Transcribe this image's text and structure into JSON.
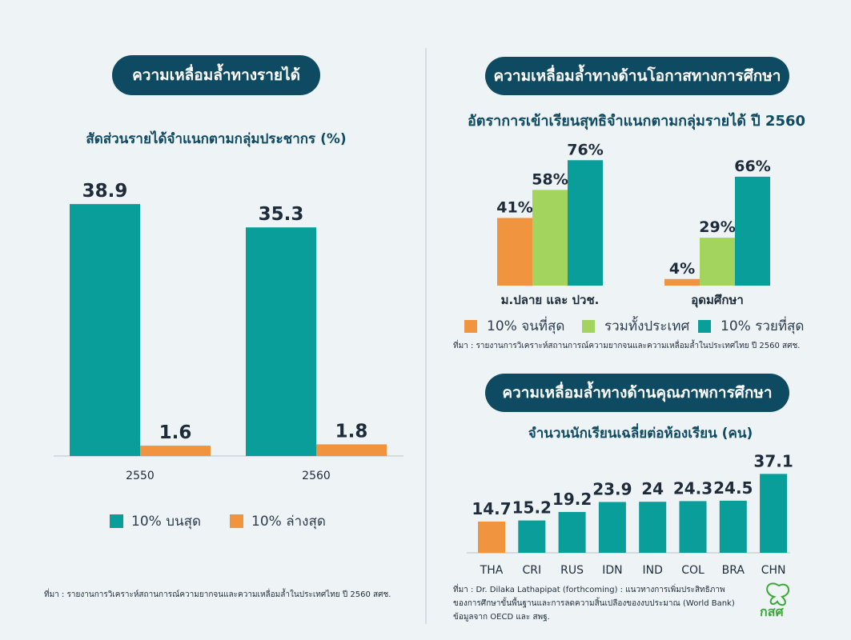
{
  "colors": {
    "teal": "#0a9e9a",
    "orange": "#f1943f",
    "green": "#a2d45e",
    "navy": "#0f4a63"
  },
  "left": {
    "heading": "ความเหลื่อมล้ำทางรายได้",
    "subtitle": "สัดส่วนรายได้จำแนกตามกลุ่มประชากร (%)",
    "legend": [
      "10% บนสุด",
      "10% ล่างสุด"
    ],
    "source": "ที่มา : รายงานการวิเคราะห์สถานการณ์ความยากจนและความเหลื่อมล้ำในประเทศไทย ปี 2560 สศช."
  },
  "right_top": {
    "heading": "ความเหลื่อมล้ำทางด้านโอกาสทางการศึกษา",
    "subtitle": "อัตราการเข้าเรียนสุทธิจำแนกตามกลุ่มรายได้ ปี 2560",
    "legend": [
      "10% จนที่สุด",
      "รวมทั้งประเทศ",
      "10% รวยที่สุด"
    ],
    "source": "ที่มา : รายงานการวิเคราะห์สถานการณ์ความยากจนและความเหลื่อมล้ำในประเทศไทย ปี 2560 สศช."
  },
  "right_bottom": {
    "heading": "ความเหลื่อมล้ำทางด้านคุณภาพการศึกษา",
    "subtitle": "จำนวนนักเรียนเฉลี่ยต่อห้องเรียน (คน)",
    "source_lines": [
      "ที่มา : Dr. Dilaka Lathapipat (forthcoming) : แนวทางการเพิ่มประสิทธิภาพ",
      "ของการศึกษาขั้นพื้นฐานและการลดความสิ้นเปลืองของงบประมาณ (World Bank)",
      "ข้อมูลจาก OECD และ สพฐ."
    ]
  },
  "logo_text": "กสศ",
  "chart_data": [
    {
      "type": "bar",
      "title": "สัดส่วนรายได้จำแนกตามกลุ่มประชากร (%)",
      "categories": [
        "2550",
        "2560"
      ],
      "series": [
        {
          "name": "10% บนสุด",
          "values": [
            38.9,
            35.3
          ],
          "labels": [
            "38.9",
            "35.3"
          ],
          "color": "#0a9e9a"
        },
        {
          "name": "10% ล่างสุด",
          "values": [
            1.6,
            1.8
          ],
          "labels": [
            "1.6",
            "1.8"
          ],
          "color": "#f1943f"
        }
      ],
      "ylim": [
        0,
        42
      ],
      "grid": false,
      "legend_position": "bottom"
    },
    {
      "type": "bar",
      "title": "อัตราการเข้าเรียนสุทธิจำแนกตามกลุ่มรายได้ ปี 2560",
      "categories": [
        "ม.ปลาย และ ปวช.",
        "อุดมศึกษา"
      ],
      "series": [
        {
          "name": "10% จนที่สุด",
          "values": [
            41,
            4
          ],
          "labels": [
            "41%",
            "4%"
          ],
          "color": "#f1943f"
        },
        {
          "name": "รวมทั้งประเทศ",
          "values": [
            58,
            29
          ],
          "labels": [
            "58%",
            "29%"
          ],
          "color": "#a2d45e"
        },
        {
          "name": "10% รวยที่สุด",
          "values": [
            76,
            66
          ],
          "labels": [
            "76%",
            "66%"
          ],
          "color": "#0a9e9a"
        }
      ],
      "ylim": [
        0,
        80
      ],
      "grid": false,
      "legend_position": "bottom"
    },
    {
      "type": "bar",
      "title": "จำนวนนักเรียนเฉลี่ยต่อห้องเรียน (คน)",
      "categories": [
        "THA",
        "CRI",
        "RUS",
        "IDN",
        "IND",
        "COL",
        "BRA",
        "CHN"
      ],
      "values": [
        14.7,
        15.2,
        19.2,
        23.9,
        24,
        24.3,
        24.5,
        37.1
      ],
      "labels": [
        "14.7",
        "15.2",
        "19.2",
        "23.9",
        "24",
        "24.3",
        "24.5",
        "37.1"
      ],
      "highlight": "THA",
      "colors": [
        "#f1943f",
        "#0a9e9a",
        "#0a9e9a",
        "#0a9e9a",
        "#0a9e9a",
        "#0a9e9a",
        "#0a9e9a",
        "#0a9e9a"
      ],
      "ylim": [
        0,
        38
      ],
      "grid": false
    }
  ]
}
